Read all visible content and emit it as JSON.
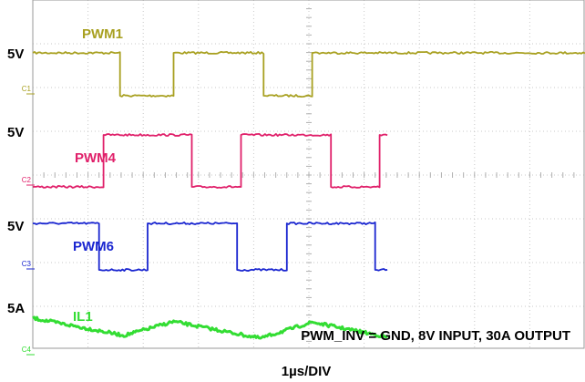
{
  "chart_data": {
    "type": "line",
    "xlabel": "1µs/DIV",
    "annotation": "PWM_INV = GND, 8V INPUT, 30A OUTPUT",
    "grid": true,
    "x_range_us": [
      0,
      10
    ],
    "channels": [
      {
        "id": "C1",
        "name": "PWM1",
        "scale": "5V",
        "color": "#a8a020",
        "hi": 5,
        "lo": 0,
        "segments": [
          {
            "t": 0.0,
            "v": 5
          },
          {
            "t": 1.58,
            "v": 5
          },
          {
            "t": 1.58,
            "v": 0
          },
          {
            "t": 2.55,
            "v": 0
          },
          {
            "t": 2.55,
            "v": 5
          },
          {
            "t": 4.18,
            "v": 5
          },
          {
            "t": 4.18,
            "v": 0
          },
          {
            "t": 5.06,
            "v": 0
          },
          {
            "t": 5.06,
            "v": 5
          },
          {
            "t": 10.0,
            "v": 5
          }
        ]
      },
      {
        "id": "C2",
        "name": "PWM4",
        "scale": "5V",
        "color": "#e0206a",
        "hi": 5,
        "lo": 0,
        "segments": [
          {
            "t": 0.0,
            "v": 0
          },
          {
            "t": 1.28,
            "v": 0
          },
          {
            "t": 1.28,
            "v": 5
          },
          {
            "t": 2.88,
            "v": 5
          },
          {
            "t": 2.88,
            "v": 0
          },
          {
            "t": 3.77,
            "v": 0
          },
          {
            "t": 3.77,
            "v": 5
          },
          {
            "t": 5.4,
            "v": 5
          },
          {
            "t": 5.4,
            "v": 0
          },
          {
            "t": 6.28,
            "v": 0
          },
          {
            "t": 6.28,
            "v": 5
          },
          {
            "t": 6.42,
            "v": 5
          }
        ]
      },
      {
        "id": "C3",
        "name": "PWM6",
        "scale": "5V",
        "color": "#1a26d0",
        "hi": 5,
        "lo": 0,
        "segments": [
          {
            "t": 0.0,
            "v": 5
          },
          {
            "t": 1.2,
            "v": 5
          },
          {
            "t": 1.2,
            "v": 0
          },
          {
            "t": 2.08,
            "v": 0
          },
          {
            "t": 2.08,
            "v": 5
          },
          {
            "t": 3.7,
            "v": 5
          },
          {
            "t": 3.7,
            "v": 0
          },
          {
            "t": 4.6,
            "v": 0
          },
          {
            "t": 4.6,
            "v": 5
          },
          {
            "t": 6.2,
            "v": 5
          },
          {
            "t": 6.2,
            "v": 0
          },
          {
            "t": 6.42,
            "v": 0
          }
        ]
      },
      {
        "id": "C4",
        "name": "IL1",
        "scale": "5A",
        "color": "#33dd33",
        "ref": 0,
        "points": [
          {
            "t": 0.0,
            "v": 5.6
          },
          {
            "t": 1.65,
            "v": 0.0
          },
          {
            "t": 2.55,
            "v": 4.5
          },
          {
            "t": 4.12,
            "v": -0.9
          },
          {
            "t": 5.06,
            "v": 4.3
          },
          {
            "t": 6.42,
            "v": -0.5
          }
        ]
      }
    ]
  }
}
